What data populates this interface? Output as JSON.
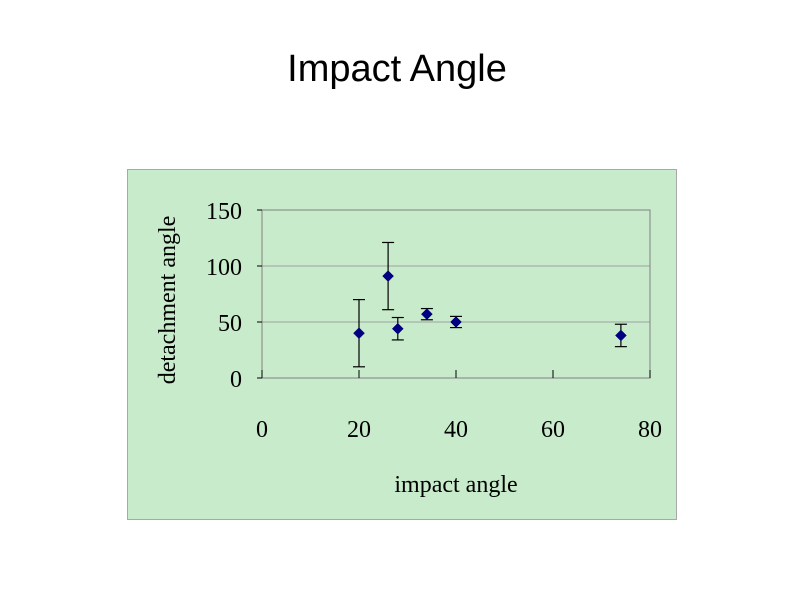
{
  "slide": {
    "title": "Impact Angle"
  },
  "colors": {
    "background": "#c8ebcb",
    "marker": "#000080",
    "gridline": "#a0a0a0",
    "errorbar": "#000000"
  },
  "chart_data": {
    "type": "scatter",
    "title": "",
    "xlabel": "impact angle",
    "ylabel": "detachment angle",
    "xlim": [
      0,
      80
    ],
    "ylim": [
      0,
      150
    ],
    "xticks": [
      0,
      20,
      40,
      60,
      80
    ],
    "yticks": [
      0,
      50,
      100,
      150
    ],
    "grid": "horizontal",
    "legend": "none",
    "marker": "diamond",
    "points": [
      {
        "x": 20,
        "y": 40,
        "err_low": 30,
        "err_high": 30
      },
      {
        "x": 26,
        "y": 91,
        "err_low": 30,
        "err_high": 30
      },
      {
        "x": 28,
        "y": 44,
        "err_low": 10,
        "err_high": 10
      },
      {
        "x": 34,
        "y": 57,
        "err_low": 5,
        "err_high": 5
      },
      {
        "x": 40,
        "y": 50,
        "err_low": 5,
        "err_high": 5
      },
      {
        "x": 74,
        "y": 38,
        "err_low": 10,
        "err_high": 10
      }
    ]
  }
}
